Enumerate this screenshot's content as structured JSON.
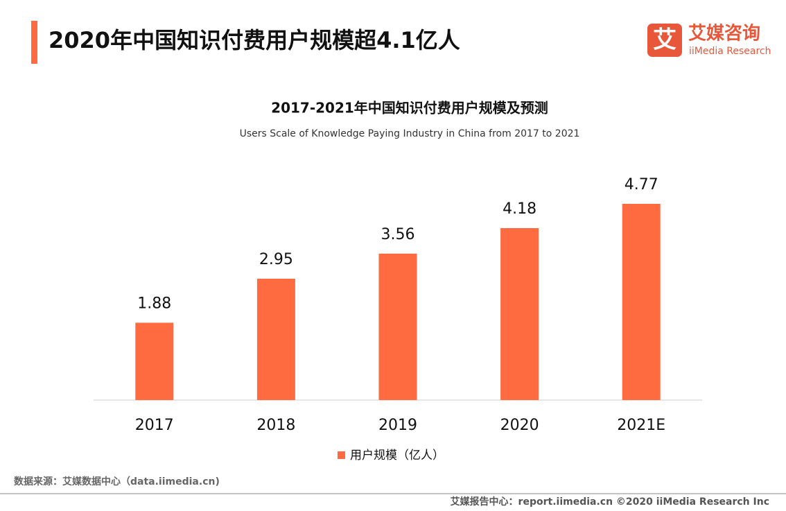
{
  "header": {
    "title": "2020年中国知识付费用户规模超4.1亿人"
  },
  "logo": {
    "icon": "艾",
    "name": "艾媒咨询",
    "name_en": "iiMedia Research"
  },
  "chart_data": {
    "type": "bar",
    "title": "2017-2021年中国知识付费用户规模及预测",
    "subtitle": "Users Scale of Knowledge Paying  Industry  in China from 2017 to 2021",
    "categories": [
      "2017",
      "2018",
      "2019",
      "2020",
      "2021E"
    ],
    "series": [
      {
        "name": "用户规模（亿人）",
        "color": "#ff6b40",
        "values": [
          1.88,
          2.95,
          3.56,
          4.18,
          4.77
        ]
      }
    ]
  },
  "footer": {
    "source": "数据来源：艾媒数据中心（data.iimedia.cn)",
    "copyright": "艾媒报告中心：report.iimedia.cn ©2020  iiMedia Research  Inc"
  }
}
